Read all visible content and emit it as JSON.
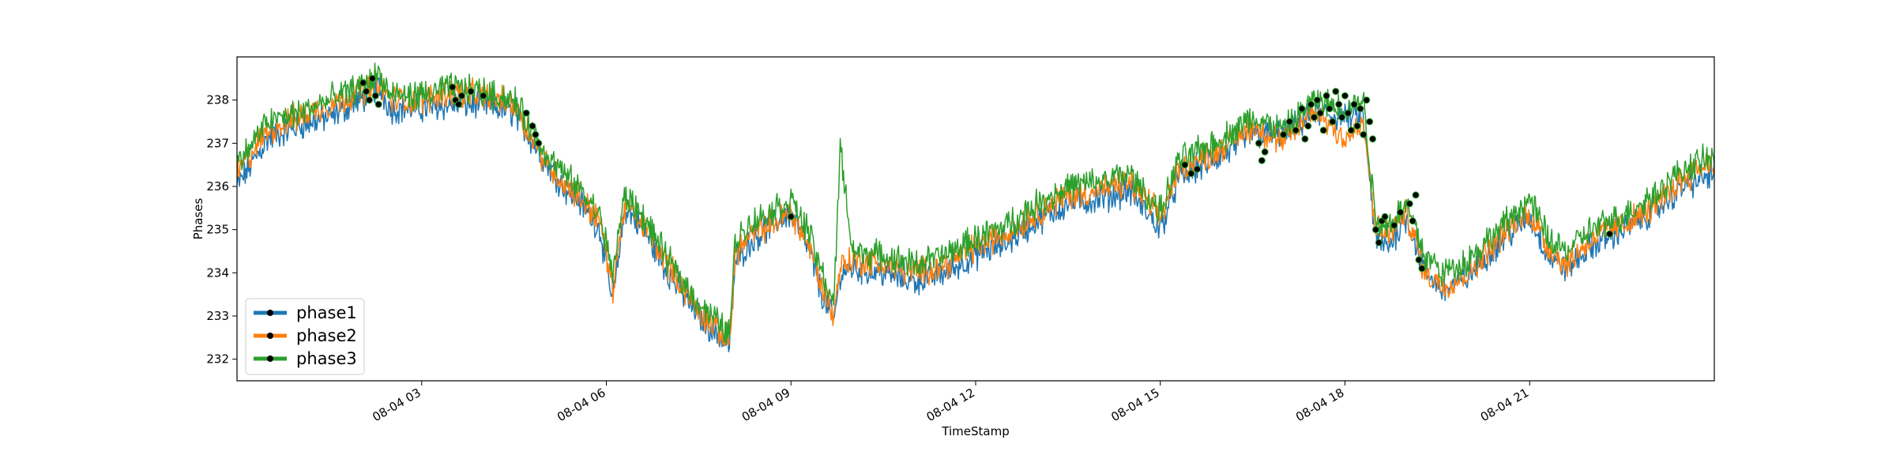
{
  "chart_data": {
    "type": "line",
    "title": "",
    "xlabel": "TimeStamp",
    "ylabel": "Phases",
    "x_unit": "hour of 08-04",
    "xlim": [
      0,
      24
    ],
    "ylim": [
      231.5,
      239.0
    ],
    "yticks": [
      232,
      233,
      234,
      235,
      236,
      237,
      238
    ],
    "xticks": [
      {
        "x": 3,
        "label": "08-04 03"
      },
      {
        "x": 6,
        "label": "08-04 06"
      },
      {
        "x": 9,
        "label": "08-04 09"
      },
      {
        "x": 12,
        "label": "08-04 12"
      },
      {
        "x": 15,
        "label": "08-04 15"
      },
      {
        "x": 18,
        "label": "08-04 18"
      },
      {
        "x": 21,
        "label": "08-04 21"
      }
    ],
    "legend_position": "lower-left",
    "grid": false,
    "series": [
      {
        "name": "phase1",
        "color": "#1f77b4",
        "x": [
          0,
          0.5,
          1,
          1.5,
          2,
          2.3,
          2.5,
          3,
          3.5,
          4,
          4.5,
          5,
          5.3,
          5.6,
          5.9,
          6.1,
          6.3,
          6.6,
          7,
          7.5,
          8,
          8.1,
          8.4,
          9,
          9.3,
          9.5,
          9.7,
          9.8,
          10,
          10.5,
          11,
          11.5,
          12,
          12.5,
          13,
          13.5,
          14,
          14.5,
          15,
          15.3,
          16,
          16.5,
          17,
          17.5,
          18,
          18.3,
          18.5,
          18.7,
          19,
          19.3,
          19.6,
          20,
          20.5,
          21,
          21.3,
          21.6,
          22,
          22.5,
          23,
          23.5,
          24
        ],
        "y": [
          236.0,
          237.1,
          237.4,
          237.6,
          238.0,
          238.3,
          237.8,
          237.8,
          237.9,
          237.9,
          237.7,
          236.6,
          236.0,
          235.6,
          235.0,
          233.3,
          235.5,
          235.0,
          234.0,
          233.0,
          232.3,
          234.3,
          234.8,
          235.4,
          234.5,
          233.5,
          232.9,
          234.0,
          234.1,
          234.0,
          233.8,
          234.0,
          234.4,
          234.7,
          235.2,
          235.6,
          235.7,
          235.9,
          235.0,
          236.2,
          236.7,
          237.2,
          237.2,
          237.7,
          237.6,
          237.6,
          234.7,
          234.6,
          235.3,
          234.0,
          233.6,
          233.9,
          234.7,
          235.3,
          234.4,
          234.1,
          234.6,
          235.0,
          235.4,
          236.0,
          236.3
        ]
      },
      {
        "name": "phase2",
        "color": "#ff7f0e",
        "x": [
          0,
          0.5,
          1,
          1.5,
          2,
          2.3,
          2.5,
          3,
          3.5,
          4,
          4.5,
          5,
          5.3,
          5.6,
          5.9,
          6.1,
          6.3,
          6.6,
          7,
          7.5,
          8,
          8.1,
          8.4,
          9,
          9.3,
          9.5,
          9.7,
          9.8,
          10,
          10.5,
          11,
          11.5,
          12,
          12.5,
          13,
          13.5,
          14,
          14.5,
          15,
          15.3,
          16,
          16.5,
          17,
          17.5,
          18,
          18.3,
          18.5,
          18.7,
          19,
          19.3,
          19.6,
          20,
          20.5,
          21,
          21.3,
          21.6,
          22,
          22.5,
          23,
          23.5,
          24
        ],
        "y": [
          236.3,
          237.3,
          237.6,
          237.9,
          238.2,
          238.4,
          238.0,
          238.0,
          238.2,
          238.1,
          237.9,
          236.6,
          236.1,
          235.7,
          235.2,
          233.6,
          235.6,
          235.1,
          234.2,
          233.1,
          232.4,
          234.5,
          234.9,
          235.4,
          234.6,
          233.7,
          233.0,
          234.2,
          234.3,
          234.2,
          234.0,
          234.2,
          234.6,
          234.9,
          235.4,
          235.8,
          235.9,
          236.1,
          235.3,
          236.4,
          236.9,
          237.4,
          237.0,
          237.8,
          237.1,
          237.4,
          235.0,
          234.9,
          235.4,
          234.0,
          233.7,
          234.0,
          234.8,
          235.4,
          234.6,
          234.2,
          234.8,
          235.1,
          235.5,
          236.2,
          236.6
        ]
      },
      {
        "name": "phase3",
        "color": "#2ca02c",
        "x": [
          0,
          0.5,
          1,
          1.5,
          2,
          2.3,
          2.5,
          3,
          3.5,
          4,
          4.5,
          5,
          5.3,
          5.6,
          5.9,
          6.1,
          6.3,
          6.6,
          7,
          7.5,
          8,
          8.1,
          8.4,
          9,
          9.3,
          9.5,
          9.7,
          9.8,
          10,
          10.5,
          11,
          11.5,
          12,
          12.5,
          13,
          13.5,
          14,
          14.5,
          15,
          15.3,
          16,
          16.5,
          17,
          17.5,
          18,
          18.3,
          18.5,
          18.7,
          19,
          19.3,
          19.6,
          20,
          20.5,
          21,
          21.3,
          21.6,
          22,
          22.5,
          23,
          23.5,
          24
        ],
        "y": [
          236.5,
          237.5,
          237.7,
          238.0,
          238.3,
          238.6,
          238.1,
          238.1,
          238.3,
          238.2,
          238.0,
          236.8,
          236.3,
          235.9,
          235.3,
          234.0,
          235.8,
          235.3,
          234.3,
          233.3,
          232.6,
          234.8,
          235.2,
          235.7,
          234.9,
          234.0,
          233.3,
          236.9,
          234.5,
          234.4,
          234.2,
          234.4,
          234.8,
          235.1,
          235.6,
          236.0,
          236.1,
          236.3,
          235.4,
          236.6,
          237.1,
          237.6,
          237.3,
          238.0,
          237.8,
          238.0,
          235.2,
          235.1,
          235.6,
          234.4,
          234.0,
          234.3,
          235.0,
          235.7,
          234.8,
          234.5,
          235.0,
          235.3,
          235.8,
          236.4,
          236.7
        ]
      }
    ],
    "markers": {
      "color": "#000000",
      "points": [
        [
          2.05,
          238.4
        ],
        [
          2.1,
          238.2
        ],
        [
          2.15,
          238.0
        ],
        [
          2.2,
          238.5
        ],
        [
          2.25,
          238.1
        ],
        [
          2.3,
          237.9
        ],
        [
          3.5,
          238.3
        ],
        [
          3.55,
          238.0
        ],
        [
          3.6,
          237.9
        ],
        [
          3.65,
          238.1
        ],
        [
          3.8,
          238.2
        ],
        [
          4.0,
          238.1
        ],
        [
          4.7,
          237.7
        ],
        [
          4.8,
          237.4
        ],
        [
          4.85,
          237.2
        ],
        [
          4.9,
          237.0
        ],
        [
          15.4,
          236.5
        ],
        [
          15.5,
          236.3
        ],
        [
          15.6,
          236.4
        ],
        [
          16.6,
          237.0
        ],
        [
          16.65,
          236.6
        ],
        [
          16.7,
          236.8
        ],
        [
          17.0,
          237.2
        ],
        [
          17.1,
          237.5
        ],
        [
          17.2,
          237.3
        ],
        [
          17.3,
          237.8
        ],
        [
          17.35,
          237.1
        ],
        [
          17.4,
          237.4
        ],
        [
          17.45,
          237.9
        ],
        [
          17.5,
          237.6
        ],
        [
          17.55,
          238.0
        ],
        [
          17.6,
          237.7
        ],
        [
          17.65,
          237.3
        ],
        [
          17.7,
          238.1
        ],
        [
          17.75,
          237.8
        ],
        [
          17.8,
          237.5
        ],
        [
          17.85,
          238.2
        ],
        [
          17.9,
          237.9
        ],
        [
          17.95,
          237.6
        ],
        [
          18.0,
          238.1
        ],
        [
          18.05,
          237.7
        ],
        [
          18.1,
          237.3
        ],
        [
          18.15,
          237.9
        ],
        [
          18.2,
          237.4
        ],
        [
          18.25,
          237.8
        ],
        [
          18.3,
          237.2
        ],
        [
          18.35,
          238.0
        ],
        [
          18.4,
          237.5
        ],
        [
          18.45,
          237.1
        ],
        [
          18.5,
          235.0
        ],
        [
          18.55,
          234.7
        ],
        [
          18.6,
          235.2
        ],
        [
          18.65,
          235.3
        ],
        [
          18.8,
          235.1
        ],
        [
          18.9,
          235.4
        ],
        [
          19.05,
          235.6
        ],
        [
          19.1,
          235.2
        ],
        [
          19.15,
          235.8
        ],
        [
          19.2,
          234.3
        ],
        [
          19.25,
          234.1
        ],
        [
          9.0,
          235.3
        ],
        [
          22.3,
          234.9
        ]
      ]
    }
  }
}
